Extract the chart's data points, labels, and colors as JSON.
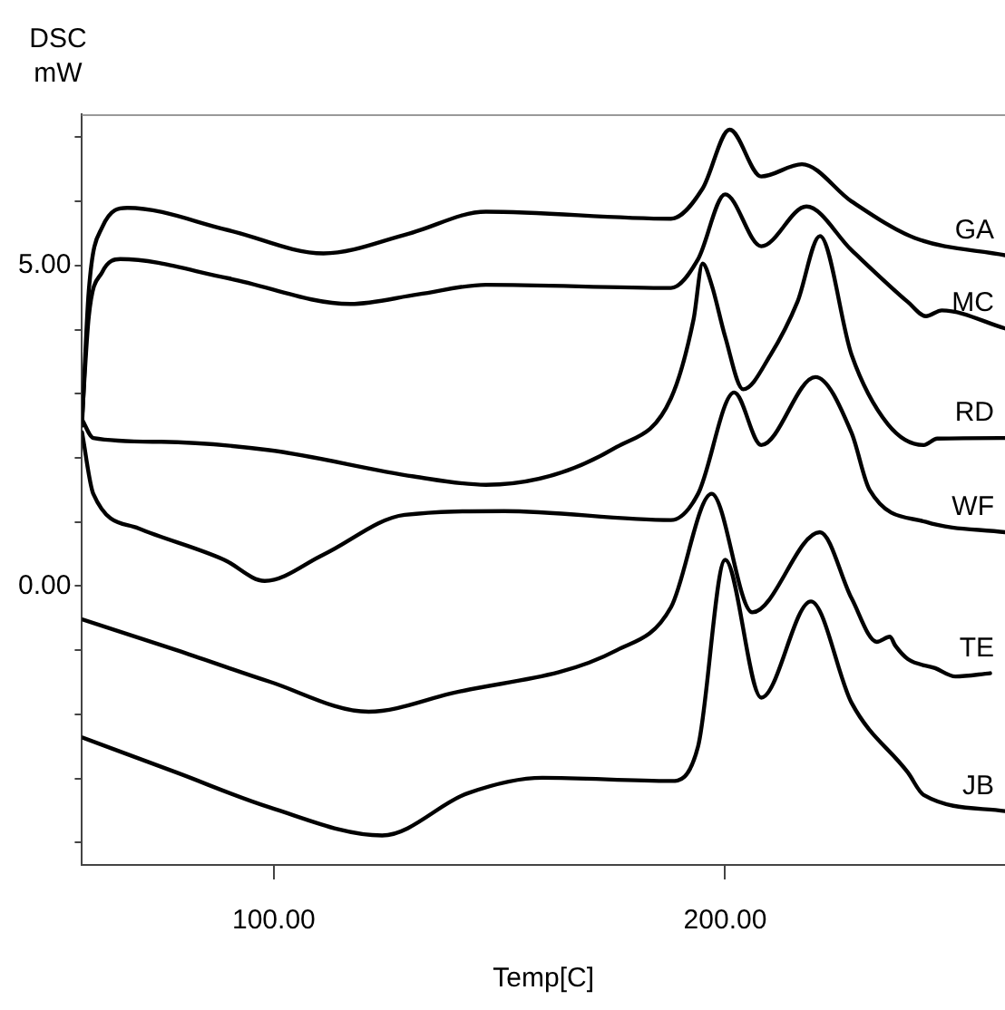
{
  "chart_data": {
    "type": "line",
    "xlabel": "Temp[C]",
    "ylabel": "DSC mW",
    "xlim": [
      57.5,
      262
    ],
    "ylim": [
      -4.35,
      7.36
    ],
    "xticks": [
      {
        "value": 100,
        "label": "100.00"
      },
      {
        "value": 200,
        "label": "200.00"
      }
    ],
    "yticks": [
      {
        "value": -4,
        "label": null
      },
      {
        "value": -3,
        "label": null
      },
      {
        "value": -2,
        "label": null
      },
      {
        "value": -1,
        "label": null
      },
      {
        "value": 0,
        "label": "0.00"
      },
      {
        "value": 1,
        "label": null
      },
      {
        "value": 2,
        "label": null
      },
      {
        "value": 3,
        "label": null
      },
      {
        "value": 4,
        "label": null
      },
      {
        "value": 5,
        "label": "5.00"
      },
      {
        "value": 6,
        "label": null
      },
      {
        "value": 7,
        "label": null
      }
    ],
    "marker": "none",
    "line_style": "solid",
    "series": [
      {
        "name": "GA",
        "color": "#000000",
        "x": [
          57.5,
          59,
          62,
          67.6,
          90,
          111,
          130,
          147,
          188,
          195,
          201,
          208,
          217,
          228,
          242,
          262
        ],
        "values": [
          2.5,
          4.6,
          5.6,
          5.9,
          5.55,
          5.19,
          5.5,
          5.84,
          5.73,
          6.2,
          7.12,
          6.39,
          6.58,
          6.0,
          5.43,
          5.16
        ]
      },
      {
        "name": "MC",
        "color": "#000000",
        "x": [
          57.5,
          59,
          62,
          66,
          90,
          117,
          132,
          147,
          188,
          194,
          200,
          208,
          218,
          228,
          240.5,
          244.5,
          248,
          262
        ],
        "values": [
          2.6,
          4.2,
          4.9,
          5.1,
          4.8,
          4.4,
          4.55,
          4.7,
          4.65,
          5.1,
          6.11,
          5.3,
          5.92,
          5.24,
          4.43,
          4.21,
          4.3,
          4.02
        ]
      },
      {
        "name": "RD",
        "color": "#000000",
        "x": [
          57.5,
          60,
          75,
          99,
          131,
          147,
          176,
          188,
          193,
          195,
          197,
          200,
          204,
          210,
          216,
          221,
          228,
          236,
          244,
          247,
          262
        ],
        "values": [
          2.6,
          2.31,
          2.25,
          2.12,
          1.71,
          1.58,
          2.17,
          2.93,
          4.16,
          5.03,
          4.7,
          3.89,
          3.07,
          3.6,
          4.43,
          5.46,
          3.61,
          2.53,
          2.2,
          2.3,
          2.31
        ]
      },
      {
        "name": "WF",
        "color": "#000000",
        "x": [
          57.5,
          60,
          70,
          89,
          98,
          111,
          129,
          151,
          188,
          194,
          202,
          208,
          220,
          228,
          232,
          244.5,
          262
        ],
        "values": [
          2.4,
          1.44,
          0.9,
          0.41,
          0.08,
          0.49,
          1.11,
          1.17,
          1.03,
          1.44,
          3.02,
          2.2,
          3.26,
          2.39,
          1.5,
          1.0,
          0.84
        ]
      },
      {
        "name": "TE",
        "color": "#000000",
        "x": [
          57.5,
          78.5,
          99,
          121,
          139,
          176,
          188,
          197,
          206,
          221,
          228,
          233.6,
          236.5,
          237.7,
          240.5,
          246.5,
          251,
          258.7
        ],
        "values": [
          -0.52,
          -1.0,
          -1.49,
          -1.96,
          -1.68,
          -1.0,
          -0.33,
          1.44,
          -0.41,
          0.84,
          -0.19,
          -0.87,
          -0.79,
          -0.93,
          -1.14,
          -1.28,
          -1.41,
          -1.36
        ]
      },
      {
        "name": "JB",
        "color": "#000000",
        "x": [
          57.5,
          78.5,
          99,
          124,
          143,
          159.5,
          188,
          194,
          200,
          208,
          219,
          228,
          240.5,
          244,
          262
        ],
        "values": [
          -2.36,
          -2.91,
          -3.45,
          -3.89,
          -3.23,
          -2.99,
          -3.04,
          -2.5,
          0.41,
          -1.74,
          -0.24,
          -1.82,
          -2.91,
          -3.26,
          -3.51
        ]
      }
    ]
  }
}
